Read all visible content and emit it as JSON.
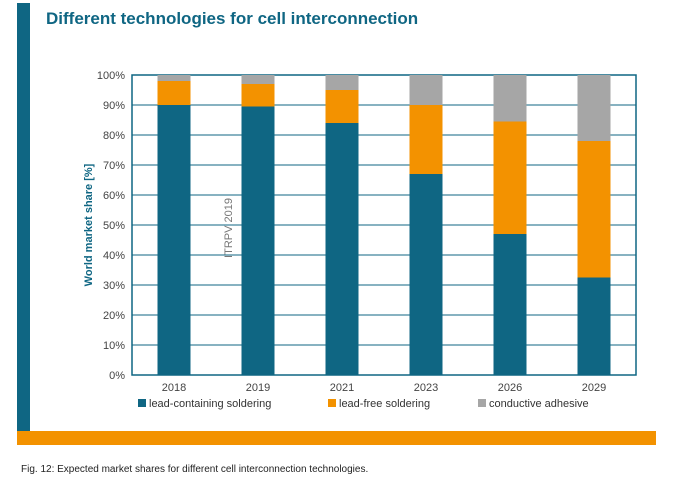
{
  "title": "Different technologies for cell interconnection",
  "caption": "Fig. 12: Expected market shares for different cell interconnection technologies.",
  "watermark": "ITRPV 2019",
  "colors": {
    "lead_containing": "#0f6683",
    "lead_free": "#f39200",
    "conductive_adhesive": "#a6a6a6",
    "frame": "#0f6683",
    "accent_bar": "#f39200"
  },
  "chart_data": {
    "type": "bar",
    "stacked": true,
    "title": "Different technologies for cell interconnection",
    "xlabel": "",
    "ylabel": "World market share [%]",
    "ylim": [
      0,
      100
    ],
    "yticks": [
      "0%",
      "10%",
      "20%",
      "30%",
      "40%",
      "50%",
      "60%",
      "70%",
      "80%",
      "90%",
      "100%"
    ],
    "categories": [
      "2018",
      "2019",
      "2021",
      "2023",
      "2026",
      "2029"
    ],
    "series": [
      {
        "name": "lead-containing soldering",
        "color": "#0f6683",
        "values": [
          90,
          89.5,
          84,
          67,
          47,
          32.5
        ]
      },
      {
        "name": "lead-free soldering",
        "color": "#f39200",
        "values": [
          8,
          7.5,
          11,
          23,
          37.5,
          45.5
        ]
      },
      {
        "name": "conductive adhesive",
        "color": "#a6a6a6",
        "values": [
          2,
          3,
          5,
          10,
          15.5,
          22
        ]
      }
    ],
    "legend_position": "bottom"
  }
}
